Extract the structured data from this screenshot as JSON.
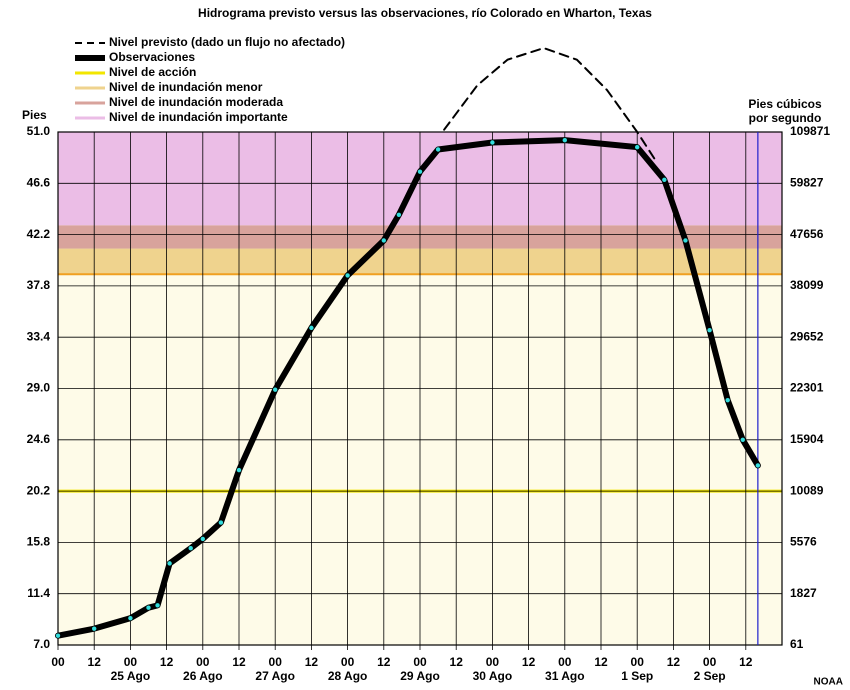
{
  "chart_data": {
    "type": "line",
    "title": "Hidrograma previsto versus las observaciones, río Colorado en Wharton, Texas",
    "y_label": "Pies",
    "y2_label": [
      "Pies cúbicos",
      "por segundo"
    ],
    "source": "NOAA",
    "xlim": [
      0,
      240
    ],
    "ylim": [
      7.0,
      51.0
    ],
    "yticks": [
      {
        "value": 51.0,
        "label": "51.0"
      },
      46.6,
      42.2,
      37.8,
      33.4,
      {
        "value": 29.0,
        "label": "29.0"
      },
      24.6,
      20.2,
      15.8,
      11.4,
      {
        "value": 7.0,
        "label": "7.0"
      }
    ],
    "y2ticks": [
      109871,
      59827,
      47656,
      38099,
      29652,
      22301,
      15904,
      10089,
      5576,
      1827,
      61
    ],
    "xticks": [
      {
        "value": 0,
        "label": "00"
      },
      {
        "value": 12,
        "label": "12"
      },
      {
        "value": 24,
        "label": "00"
      },
      {
        "value": 36,
        "label": "12"
      },
      {
        "value": 48,
        "label": "00"
      },
      {
        "value": 60,
        "label": "12"
      },
      {
        "value": 72,
        "label": "00"
      },
      {
        "value": 84,
        "label": "12"
      },
      {
        "value": 96,
        "label": "00"
      },
      {
        "value": 108,
        "label": "12"
      },
      {
        "value": 120,
        "label": "00"
      },
      {
        "value": 132,
        "label": "12"
      },
      {
        "value": 144,
        "label": "00"
      },
      {
        "value": 156,
        "label": "12"
      },
      {
        "value": 168,
        "label": "00"
      },
      {
        "value": 180,
        "label": "12"
      },
      {
        "value": 192,
        "label": "00"
      },
      {
        "value": 204,
        "label": "12"
      },
      {
        "value": 216,
        "label": "00"
      },
      {
        "value": 228,
        "label": "12"
      }
    ],
    "date_labels": [
      {
        "value": 24,
        "label": "25 Ago"
      },
      {
        "value": 48,
        "label": "26 Ago"
      },
      {
        "value": 72,
        "label": "27 Ago"
      },
      {
        "value": 96,
        "label": "28 Ago"
      },
      {
        "value": 120,
        "label": "29 Ago"
      },
      {
        "value": 144,
        "label": "30 Ago"
      },
      {
        "value": 168,
        "label": "31 Ago"
      },
      {
        "value": 192,
        "label": "1 Sep"
      },
      {
        "value": 216,
        "label": "2 Sep"
      }
    ],
    "levels": [
      {
        "name": "Nivel de acción",
        "value": 20.2,
        "color": "#f2e600"
      },
      {
        "name": "Nivel de inundación menor",
        "value": 38.8,
        "color": "#efd38e"
      },
      {
        "name": "Nivel de inundación moderada",
        "value": 41.0,
        "color": "#d8a39c"
      },
      {
        "name": "Nivel de inundación importante",
        "value": 43.0,
        "color": "#ebbde6"
      }
    ],
    "current_time": 232,
    "series": [
      {
        "name": "Nivel previsto (dado un flujo no afectado)",
        "color": "#000000",
        "dashed": true,
        "x": [
          128,
          139,
          149,
          161,
          172,
          182,
          192,
          198
        ],
        "values": [
          51.2,
          55.0,
          57.2,
          58.2,
          57.2,
          54.6,
          51.0,
          48.6
        ]
      },
      {
        "name": "Observaciones",
        "color": "#000000",
        "marker_color": "#33dddd",
        "x": [
          0,
          12,
          24,
          30,
          33,
          37,
          44,
          48,
          54,
          60,
          72,
          84,
          96,
          108,
          113,
          120,
          126,
          144,
          168,
          192,
          201,
          208,
          216,
          222,
          227,
          232
        ],
        "values": [
          7.8,
          8.4,
          9.3,
          10.2,
          10.4,
          14.0,
          15.3,
          16.1,
          17.5,
          22.0,
          28.9,
          34.2,
          38.7,
          41.7,
          43.9,
          47.6,
          49.5,
          50.1,
          50.3,
          49.7,
          46.9,
          41.7,
          34.0,
          28.0,
          24.6,
          22.4
        ]
      }
    ]
  }
}
